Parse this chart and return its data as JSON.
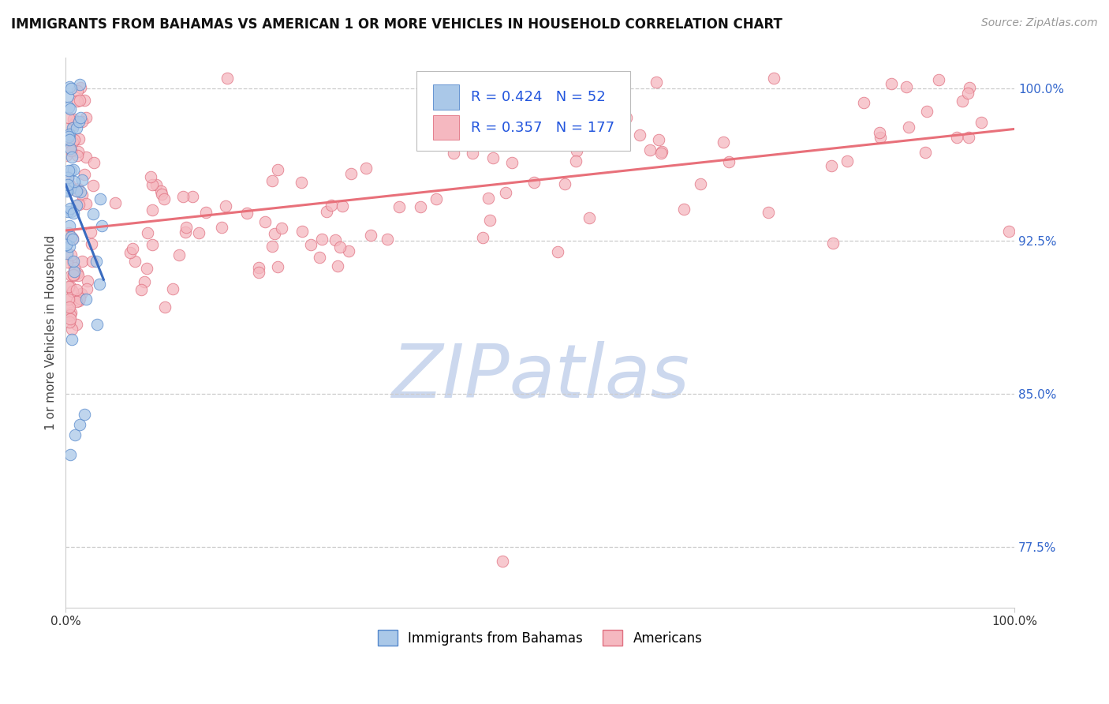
{
  "title": "IMMIGRANTS FROM BAHAMAS VS AMERICAN 1 OR MORE VEHICLES IN HOUSEHOLD CORRELATION CHART",
  "source": "Source: ZipAtlas.com",
  "ylabel": "1 or more Vehicles in Household",
  "legend_blue_r": "0.424",
  "legend_blue_n": "52",
  "legend_pink_r": "0.357",
  "legend_pink_n": "177",
  "legend_label_blue": "Immigrants from Bahamas",
  "legend_label_pink": "Americans",
  "blue_fill_color": "#aac8e8",
  "pink_fill_color": "#f5b8c0",
  "blue_edge_color": "#5588cc",
  "pink_edge_color": "#e07080",
  "blue_line_color": "#3a6bbf",
  "pink_line_color": "#e8707a",
  "watermark_text": "ZIPatlas",
  "watermark_color": "#ccd8ee",
  "background_color": "#ffffff",
  "title_color": "#111111",
  "title_fontsize": 12,
  "source_color": "#999999",
  "grid_color": "#cccccc",
  "axis_color": "#cccccc",
  "right_tick_color": "#3366cc",
  "xlim": [
    0.0,
    1.0
  ],
  "ylim": [
    0.745,
    1.015
  ],
  "yright_labels": [
    "100.0%",
    "92.5%",
    "85.0%",
    "77.5%"
  ],
  "yright_values": [
    1.0,
    0.925,
    0.85,
    0.775
  ],
  "scatter_size": 110
}
